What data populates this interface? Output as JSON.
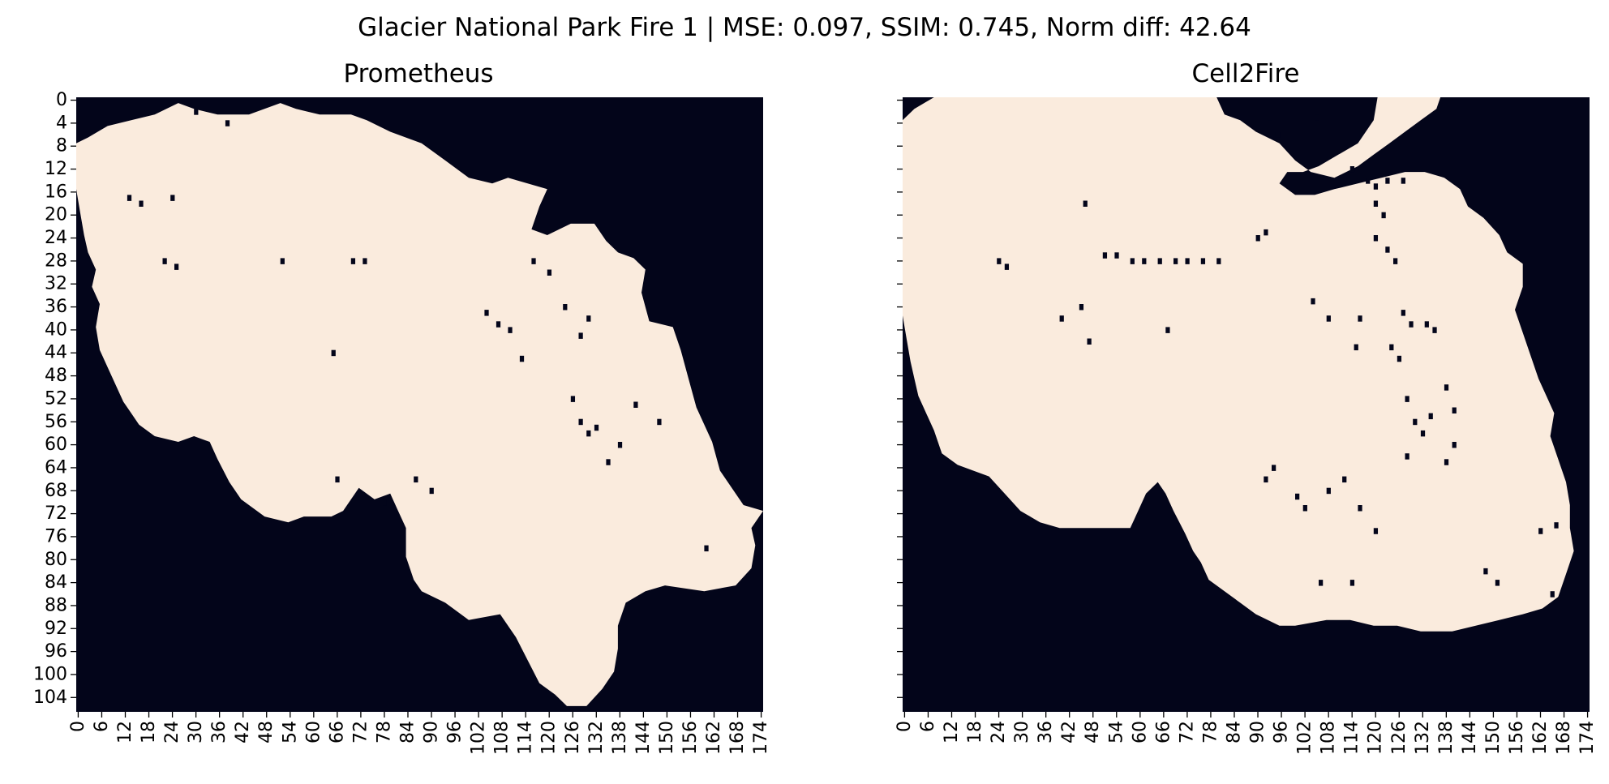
{
  "figure": {
    "suptitle": "Glacier National Park Fire 1 | MSE: 0.097, SSIM: 0.745, Norm diff: 42.64"
  },
  "colors": {
    "unburned": "#03051a",
    "burned": "#faebdd",
    "axis": "#000000"
  },
  "chart_data": [
    {
      "type": "heatmap",
      "title": "Prometheus",
      "xlabel": "",
      "ylabel": "",
      "n_cols": 175,
      "n_rows": 107,
      "xlim": [
        0,
        175
      ],
      "ylim": [
        107,
        0
      ],
      "x_tick_labels": [
        "0",
        "6",
        "12",
        "18",
        "24",
        "30",
        "36",
        "42",
        "48",
        "54",
        "60",
        "66",
        "72",
        "78",
        "84",
        "90",
        "96",
        "102",
        "108",
        "114",
        "120",
        "126",
        "132",
        "138",
        "144",
        "150",
        "156",
        "162",
        "168",
        "174"
      ],
      "y_tick_labels": [
        "0",
        "4",
        "8",
        "12",
        "16",
        "20",
        "24",
        "28",
        "32",
        "36",
        "40",
        "44",
        "48",
        "52",
        "56",
        "60",
        "64",
        "68",
        "72",
        "76",
        "80",
        "84",
        "88",
        "92",
        "96",
        "100",
        "104"
      ],
      "colorbar": false,
      "values_description": "binary: 0 = not burned (dark), 1 = burned (light)",
      "burned_boundary": [
        [
          0,
          8
        ],
        [
          3,
          7
        ],
        [
          8,
          5
        ],
        [
          14,
          4
        ],
        [
          20,
          3
        ],
        [
          26,
          1
        ],
        [
          30,
          2
        ],
        [
          36,
          3
        ],
        [
          44,
          3
        ],
        [
          52,
          1
        ],
        [
          56,
          2
        ],
        [
          62,
          3
        ],
        [
          70,
          3
        ],
        [
          74,
          4
        ],
        [
          80,
          6
        ],
        [
          88,
          8
        ],
        [
          94,
          11
        ],
        [
          100,
          14
        ],
        [
          106,
          15
        ],
        [
          110,
          14
        ],
        [
          115,
          15
        ],
        [
          120,
          16
        ],
        [
          118,
          19
        ],
        [
          116,
          23
        ],
        [
          120,
          24
        ],
        [
          126,
          22
        ],
        [
          132,
          22
        ],
        [
          135,
          25
        ],
        [
          138,
          27
        ],
        [
          142,
          28
        ],
        [
          145,
          30
        ],
        [
          144,
          34
        ],
        [
          146,
          39
        ],
        [
          152,
          40
        ],
        [
          154,
          44
        ],
        [
          156,
          49
        ],
        [
          158,
          54
        ],
        [
          162,
          60
        ],
        [
          164,
          65
        ],
        [
          167,
          68
        ],
        [
          170,
          71
        ],
        [
          175,
          72
        ],
        [
          172,
          75
        ],
        [
          173,
          78
        ],
        [
          172,
          82
        ],
        [
          168,
          85
        ],
        [
          160,
          86
        ],
        [
          150,
          85
        ],
        [
          145,
          86
        ],
        [
          140,
          88
        ],
        [
          138,
          92
        ],
        [
          138,
          96
        ],
        [
          137,
          100
        ],
        [
          134,
          103
        ],
        [
          130,
          106
        ],
        [
          125,
          106
        ],
        [
          122,
          104
        ],
        [
          118,
          102
        ],
        [
          115,
          98
        ],
        [
          112,
          94
        ],
        [
          108,
          90
        ],
        [
          100,
          91
        ],
        [
          94,
          88
        ],
        [
          88,
          86
        ],
        [
          86,
          84
        ],
        [
          84,
          80
        ],
        [
          84,
          75
        ],
        [
          82,
          72
        ],
        [
          80,
          69
        ],
        [
          76,
          70
        ],
        [
          72,
          68
        ],
        [
          68,
          72
        ],
        [
          65,
          73
        ],
        [
          58,
          73
        ],
        [
          54,
          74
        ],
        [
          48,
          73
        ],
        [
          42,
          70
        ],
        [
          39,
          67
        ],
        [
          36,
          63
        ],
        [
          34,
          60
        ],
        [
          30,
          59
        ],
        [
          26,
          60
        ],
        [
          20,
          59
        ],
        [
          16,
          57
        ],
        [
          14,
          55
        ],
        [
          12,
          53
        ],
        [
          10,
          50
        ],
        [
          8,
          47
        ],
        [
          6,
          44
        ],
        [
          5,
          40
        ],
        [
          6,
          36
        ],
        [
          4,
          33
        ],
        [
          5,
          30
        ],
        [
          3,
          27
        ],
        [
          2,
          24
        ],
        [
          1,
          20
        ],
        [
          0,
          16
        ],
        [
          0,
          12
        ]
      ],
      "unburned_specks": [
        [
          65,
          44
        ],
        [
          13,
          17
        ],
        [
          16,
          18
        ],
        [
          24,
          17
        ],
        [
          22,
          28
        ],
        [
          25,
          29
        ],
        [
          30,
          2
        ],
        [
          38,
          4
        ],
        [
          52,
          28
        ],
        [
          70,
          28
        ],
        [
          73,
          28
        ],
        [
          116,
          28
        ],
        [
          120,
          30
        ],
        [
          110,
          40
        ],
        [
          113,
          45
        ],
        [
          124,
          36
        ],
        [
          128,
          41
        ],
        [
          130,
          38
        ],
        [
          126,
          52
        ],
        [
          128,
          56
        ],
        [
          132,
          57
        ],
        [
          130,
          58
        ],
        [
          138,
          60
        ],
        [
          135,
          63
        ],
        [
          142,
          53
        ],
        [
          148,
          56
        ],
        [
          86,
          66
        ],
        [
          90,
          68
        ],
        [
          78,
          70
        ],
        [
          66,
          66
        ],
        [
          104,
          37
        ],
        [
          107,
          39
        ],
        [
          160,
          78
        ]
      ]
    },
    {
      "type": "heatmap",
      "title": "Cell2Fire",
      "xlabel": "",
      "ylabel": "",
      "n_cols": 175,
      "n_rows": 107,
      "xlim": [
        0,
        175
      ],
      "ylim": [
        107,
        0
      ],
      "x_tick_labels": [
        "0",
        "6",
        "12",
        "18",
        "24",
        "30",
        "36",
        "42",
        "48",
        "54",
        "60",
        "66",
        "72",
        "78",
        "84",
        "90",
        "96",
        "102",
        "108",
        "114",
        "120",
        "126",
        "132",
        "138",
        "144",
        "150",
        "156",
        "162",
        "168",
        "174"
      ],
      "y_tick_labels": [],
      "colorbar": false,
      "values_description": "binary: 0 = not burned (dark), 1 = burned (light)",
      "burned_boundary": [
        [
          0,
          4
        ],
        [
          3,
          2
        ],
        [
          8,
          0
        ],
        [
          80,
          0
        ],
        [
          82,
          3
        ],
        [
          86,
          4
        ],
        [
          90,
          6
        ],
        [
          96,
          8
        ],
        [
          100,
          11
        ],
        [
          104,
          13
        ],
        [
          110,
          14
        ],
        [
          116,
          12
        ],
        [
          120,
          10
        ],
        [
          124,
          8
        ],
        [
          128,
          6
        ],
        [
          132,
          4
        ],
        [
          136,
          2
        ],
        [
          137,
          0
        ],
        [
          121,
          0
        ],
        [
          120,
          4
        ],
        [
          116,
          8
        ],
        [
          111,
          10
        ],
        [
          106,
          12
        ],
        [
          102,
          13
        ],
        [
          98,
          13
        ],
        [
          96,
          15
        ],
        [
          100,
          17
        ],
        [
          105,
          17
        ],
        [
          110,
          16
        ],
        [
          116,
          15
        ],
        [
          122,
          14
        ],
        [
          128,
          13
        ],
        [
          133,
          13
        ],
        [
          138,
          14
        ],
        [
          142,
          16
        ],
        [
          144,
          19
        ],
        [
          148,
          21
        ],
        [
          152,
          24
        ],
        [
          154,
          27
        ],
        [
          158,
          29
        ],
        [
          158,
          33
        ],
        [
          156,
          37
        ],
        [
          158,
          41
        ],
        [
          160,
          45
        ],
        [
          162,
          49
        ],
        [
          164,
          52
        ],
        [
          166,
          55
        ],
        [
          165,
          59
        ],
        [
          167,
          63
        ],
        [
          169,
          67
        ],
        [
          170,
          71
        ],
        [
          170,
          75
        ],
        [
          171,
          79
        ],
        [
          169,
          83
        ],
        [
          167,
          87
        ],
        [
          163,
          89
        ],
        [
          158,
          90
        ],
        [
          152,
          91
        ],
        [
          146,
          92
        ],
        [
          140,
          93
        ],
        [
          132,
          93
        ],
        [
          126,
          92
        ],
        [
          120,
          92
        ],
        [
          114,
          91
        ],
        [
          108,
          91
        ],
        [
          100,
          92
        ],
        [
          96,
          92
        ],
        [
          90,
          90
        ],
        [
          86,
          88
        ],
        [
          82,
          86
        ],
        [
          78,
          84
        ],
        [
          76,
          81
        ],
        [
          74,
          79
        ],
        [
          72,
          76
        ],
        [
          69,
          72
        ],
        [
          67,
          69
        ],
        [
          65,
          67
        ],
        [
          62,
          69
        ],
        [
          60,
          72
        ],
        [
          58,
          75
        ],
        [
          52,
          75
        ],
        [
          46,
          75
        ],
        [
          40,
          75
        ],
        [
          35,
          74
        ],
        [
          30,
          72
        ],
        [
          26,
          69
        ],
        [
          22,
          66
        ],
        [
          18,
          65
        ],
        [
          14,
          64
        ],
        [
          10,
          62
        ],
        [
          8,
          58
        ],
        [
          6,
          55
        ],
        [
          4,
          52
        ],
        [
          3,
          49
        ],
        [
          2,
          46
        ],
        [
          1,
          42
        ],
        [
          0,
          38
        ],
        [
          0,
          30
        ],
        [
          0,
          20
        ],
        [
          0,
          10
        ]
      ],
      "unburned_specks": [
        [
          24,
          28
        ],
        [
          26,
          29
        ],
        [
          46,
          18
        ],
        [
          51,
          27
        ],
        [
          54,
          27
        ],
        [
          58,
          28
        ],
        [
          61,
          28
        ],
        [
          65,
          28
        ],
        [
          69,
          28
        ],
        [
          72,
          28
        ],
        [
          76,
          28
        ],
        [
          80,
          28
        ],
        [
          90,
          24
        ],
        [
          92,
          23
        ],
        [
          105,
          3
        ],
        [
          114,
          12
        ],
        [
          118,
          14
        ],
        [
          120,
          15
        ],
        [
          123,
          14
        ],
        [
          127,
          14
        ],
        [
          120,
          18
        ],
        [
          122,
          20
        ],
        [
          120,
          24
        ],
        [
          123,
          26
        ],
        [
          125,
          28
        ],
        [
          104,
          35
        ],
        [
          108,
          38
        ],
        [
          116,
          38
        ],
        [
          127,
          37
        ],
        [
          129,
          39
        ],
        [
          133,
          39
        ],
        [
          135,
          40
        ],
        [
          115,
          43
        ],
        [
          124,
          43
        ],
        [
          126,
          45
        ],
        [
          128,
          52
        ],
        [
          130,
          56
        ],
        [
          132,
          58
        ],
        [
          134,
          55
        ],
        [
          138,
          50
        ],
        [
          140,
          54
        ],
        [
          140,
          60
        ],
        [
          138,
          63
        ],
        [
          128,
          62
        ],
        [
          94,
          64
        ],
        [
          92,
          66
        ],
        [
          100,
          69
        ],
        [
          102,
          71
        ],
        [
          108,
          68
        ],
        [
          112,
          66
        ],
        [
          116,
          71
        ],
        [
          120,
          75
        ],
        [
          162,
          75
        ],
        [
          166,
          74
        ],
        [
          148,
          82
        ],
        [
          151,
          84
        ],
        [
          165,
          86
        ],
        [
          114,
          84
        ],
        [
          106,
          84
        ],
        [
          93,
          4
        ],
        [
          95,
          6
        ],
        [
          40,
          38
        ],
        [
          45,
          36
        ],
        [
          47,
          42
        ],
        [
          67,
          40
        ]
      ]
    }
  ]
}
